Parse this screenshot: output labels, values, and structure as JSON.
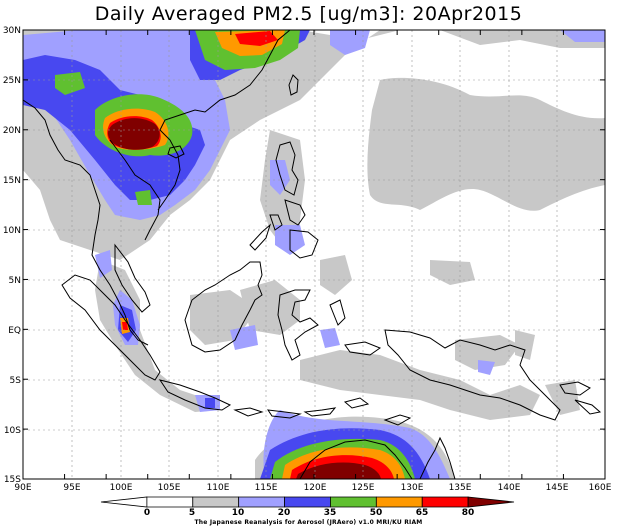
{
  "title": "Daily Averaged PM2.5 [ug/m3]: 20Apr2015",
  "lat_labels": [
    "30N",
    "25N",
    "20N",
    "15N",
    "10N",
    "5N",
    "EQ",
    "5S",
    "10S",
    "15S"
  ],
  "lon_labels": [
    "90E",
    "95E",
    "100E",
    "105E",
    "110E",
    "115E",
    "120E",
    "125E",
    "130E",
    "135E",
    "140E",
    "145E",
    "150E",
    "155E",
    "160E"
  ],
  "colorbar": {
    "levels": [
      "0",
      "5",
      "10",
      "20",
      "35",
      "50",
      "65",
      "80"
    ],
    "colors": [
      "#ffffff",
      "#ffffff",
      "#c8c8c8",
      "#a0a0ff",
      "#4848f0",
      "#60c030",
      "#ff9900",
      "#ff0000",
      "#800000"
    ]
  },
  "credit": "The Japanese Reanalysis for Aerosol (JRAero) v1.0 MRI/KU RIAM"
}
